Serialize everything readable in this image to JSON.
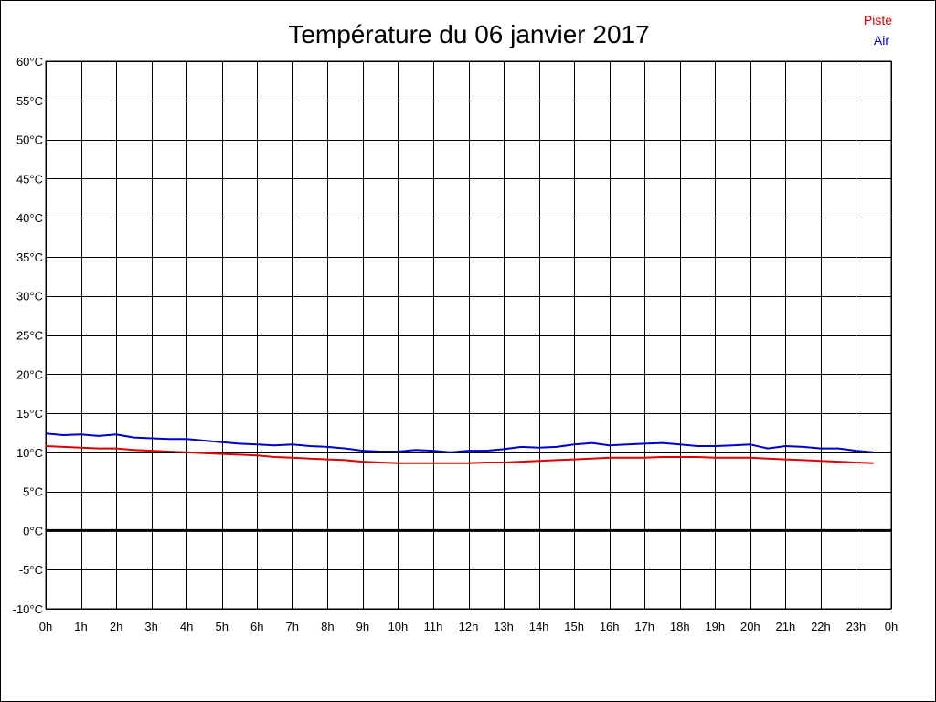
{
  "chart_data": {
    "type": "line",
    "title": "Température du 06 janvier 2017",
    "xlabel": "",
    "ylabel": "",
    "x_tick_labels": [
      "0h",
      "1h",
      "2h",
      "3h",
      "4h",
      "5h",
      "6h",
      "7h",
      "8h",
      "9h",
      "10h",
      "11h",
      "12h",
      "13h",
      "14h",
      "15h",
      "16h",
      "17h",
      "18h",
      "19h",
      "20h",
      "21h",
      "22h",
      "23h",
      "0h"
    ],
    "y_tick_labels": [
      "60°C",
      "55°C",
      "50°C",
      "45°C",
      "40°C",
      "35°C",
      "30°C",
      "25°C",
      "20°C",
      "15°C",
      "10°C",
      "5°C",
      "0°C",
      "-5°C",
      "-10°C"
    ],
    "xlim": [
      0,
      24
    ],
    "ylim": [
      -10,
      60
    ],
    "grid": true,
    "legend_position": "top-right",
    "zero_line": true,
    "series": [
      {
        "name": "Piste",
        "color": "#e00000",
        "x": [
          0,
          0.5,
          1,
          1.5,
          2,
          2.5,
          3,
          3.5,
          4,
          4.5,
          5,
          5.5,
          6,
          6.5,
          7,
          7.5,
          8,
          8.5,
          9,
          9.5,
          10,
          10.5,
          11,
          11.5,
          12,
          12.5,
          13,
          13.5,
          14,
          14.5,
          15,
          15.5,
          16,
          16.5,
          17,
          17.5,
          18,
          18.5,
          19,
          19.5,
          20,
          20.5,
          21,
          21.5,
          22,
          22.5,
          23,
          23.5
        ],
        "values": [
          10.8,
          10.7,
          10.6,
          10.5,
          10.5,
          10.3,
          10.2,
          10.1,
          10.0,
          9.9,
          9.8,
          9.7,
          9.6,
          9.4,
          9.3,
          9.2,
          9.1,
          9.0,
          8.8,
          8.7,
          8.6,
          8.6,
          8.6,
          8.6,
          8.6,
          8.7,
          8.7,
          8.8,
          8.9,
          9.0,
          9.1,
          9.2,
          9.3,
          9.3,
          9.3,
          9.4,
          9.4,
          9.4,
          9.3,
          9.3,
          9.3,
          9.2,
          9.1,
          9.0,
          8.9,
          8.8,
          8.7,
          8.6
        ]
      },
      {
        "name": "Air",
        "color": "#0000cc",
        "x": [
          0,
          0.5,
          1,
          1.5,
          2,
          2.5,
          3,
          3.5,
          4,
          4.5,
          5,
          5.5,
          6,
          6.5,
          7,
          7.5,
          8,
          8.5,
          9,
          9.5,
          10,
          10.5,
          11,
          11.5,
          12,
          12.5,
          13,
          13.5,
          14,
          14.5,
          15,
          15.5,
          16,
          16.5,
          17,
          17.5,
          18,
          18.5,
          19,
          19.5,
          20,
          20.5,
          21,
          21.5,
          22,
          22.5,
          23,
          23.5
        ],
        "values": [
          12.4,
          12.2,
          12.3,
          12.1,
          12.3,
          11.9,
          11.8,
          11.7,
          11.7,
          11.5,
          11.3,
          11.1,
          11.0,
          10.9,
          11.0,
          10.8,
          10.7,
          10.5,
          10.2,
          10.1,
          10.1,
          10.3,
          10.2,
          10.0,
          10.2,
          10.2,
          10.4,
          10.7,
          10.6,
          10.7,
          11.0,
          11.2,
          10.9,
          11.0,
          11.1,
          11.2,
          11.0,
          10.8,
          10.8,
          10.9,
          11.0,
          10.5,
          10.8,
          10.7,
          10.5,
          10.5,
          10.2,
          10.0
        ]
      }
    ]
  }
}
